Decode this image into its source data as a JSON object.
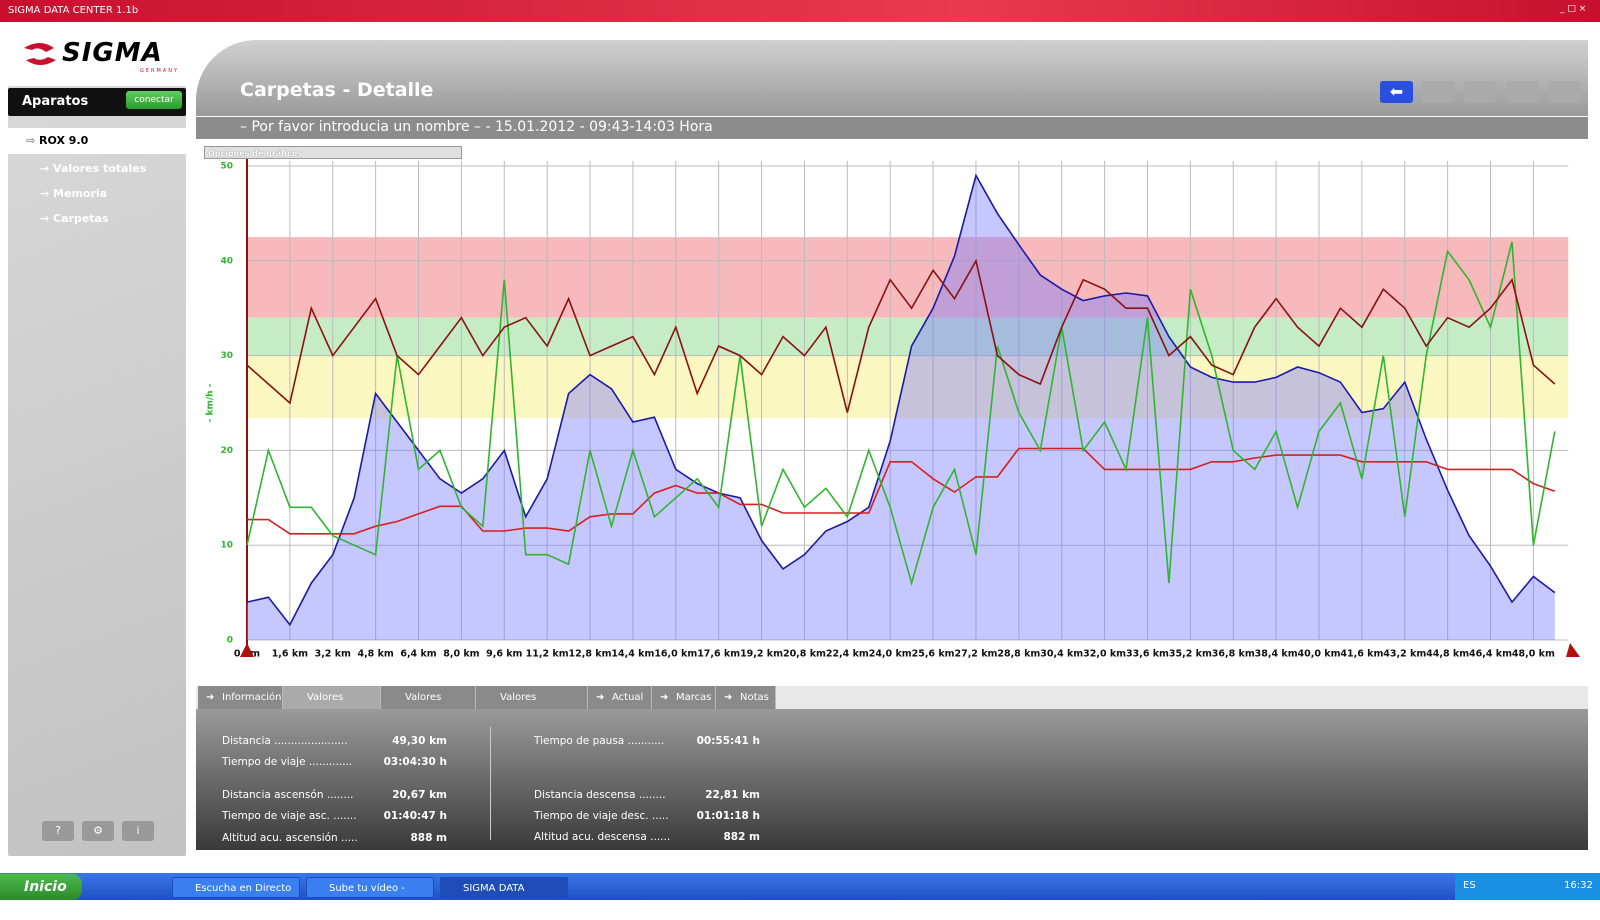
{
  "window_title": "SIGMA DATA CENTER 1.1b",
  "logo": {
    "brand": "SIGMA",
    "tagline": "GERMANY"
  },
  "sidebar": {
    "header": "Aparatos",
    "connect_button": "conectar",
    "device": "ROX 9.0",
    "items": [
      "Valores totales",
      "Memoria",
      "Carpetas"
    ]
  },
  "header": {
    "title": "Carpetas - Detalle",
    "subtitle": "– Por favor introducia un nombre – - 15.01.2012 - 09:43-14:03 Hora"
  },
  "chart_options": "Opciones de gráficos",
  "chart_data": {
    "type": "line",
    "y_label": "- km/h -",
    "xlim": [
      0,
      49.3
    ],
    "ylim": [
      0,
      50
    ],
    "yticks": [
      0,
      10,
      20,
      30,
      40,
      50
    ],
    "grid": true,
    "xticks": [
      {
        "value": 0,
        "label": "0 km"
      },
      {
        "value": 1.6,
        "label": "1,6 km"
      },
      {
        "value": 3.2,
        "label": "3,2 km"
      },
      {
        "value": 4.8,
        "label": "4,8 km"
      },
      {
        "value": 6.4,
        "label": "6,4 km"
      },
      {
        "value": 8,
        "label": "8,0 km"
      },
      {
        "value": 9.6,
        "label": "9,6 km"
      },
      {
        "value": 11.2,
        "label": "11,2 km"
      },
      {
        "value": 12.8,
        "label": "12,8 km"
      },
      {
        "value": 14.4,
        "label": "14,4 km"
      },
      {
        "value": 16,
        "label": "16,0 km"
      },
      {
        "value": 17.6,
        "label": "17,6 km"
      },
      {
        "value": 19.2,
        "label": "19,2 km"
      },
      {
        "value": 20.8,
        "label": "20,8 km"
      },
      {
        "value": 22.4,
        "label": "22,4 km"
      },
      {
        "value": 24,
        "label": "24,0 km"
      },
      {
        "value": 25.6,
        "label": "25,6 km"
      },
      {
        "value": 27.2,
        "label": "27,2 km"
      },
      {
        "value": 28.8,
        "label": "28,8 km"
      },
      {
        "value": 30.4,
        "label": "30,4 km"
      },
      {
        "value": 32,
        "label": "32,0 km"
      },
      {
        "value": 33.6,
        "label": "33,6 km"
      },
      {
        "value": 35.2,
        "label": "35,2 km"
      },
      {
        "value": 36.8,
        "label": "36,8 km"
      },
      {
        "value": 38.4,
        "label": "38,4 km"
      },
      {
        "value": 40,
        "label": "40,0 km"
      },
      {
        "value": 41.6,
        "label": "41,6 km"
      },
      {
        "value": 43.2,
        "label": "43,2 km"
      },
      {
        "value": 44.8,
        "label": "44,8 km"
      },
      {
        "value": 46.4,
        "label": "46,4 km"
      },
      {
        "value": 48,
        "label": "48,0 km"
      }
    ],
    "zones": [
      {
        "from": 34,
        "to": 42.5,
        "color": "#f7b9bb"
      },
      {
        "from": 30,
        "to": 34,
        "color": "#c5ecc5"
      },
      {
        "from": 23.4,
        "to": 30,
        "color": "#fbf7c0"
      }
    ],
    "x": [
      0,
      0.8,
      1.6,
      2.4,
      3.2,
      4,
      4.8,
      5.6,
      6.4,
      7.2,
      8,
      8.8,
      9.6,
      10.4,
      11.2,
      12,
      12.8,
      13.6,
      14.4,
      15.2,
      16,
      16.8,
      17.6,
      18.4,
      19.2,
      20,
      20.8,
      21.6,
      22.4,
      23.2,
      24,
      24.8,
      25.6,
      26.4,
      27.2,
      28,
      28.8,
      29.6,
      30.4,
      31.2,
      32,
      32.8,
      33.6,
      34.4,
      35.2,
      36,
      36.8,
      37.6,
      38.4,
      39.2,
      40,
      40.8,
      41.6,
      42.4,
      43.2,
      44,
      44.8,
      45.6,
      46.4,
      47.2,
      48,
      48.8
    ],
    "series": [
      {
        "color": "#1a1aaa",
        "area": true,
        "values": [
          4,
          4.5,
          1.6,
          6,
          9,
          15,
          26,
          23,
          20,
          17,
          15.5,
          17,
          20,
          13,
          17,
          26,
          28,
          26.5,
          23,
          23.5,
          18,
          16.5,
          15.5,
          15,
          10.5,
          7.5,
          9,
          11.5,
          12.5,
          14,
          21,
          31,
          35,
          40.5,
          49,
          45,
          41.7,
          38.5,
          37,
          35.8,
          36.3,
          36.6,
          36.3,
          32,
          28.8,
          27.7,
          27.2,
          27.2,
          27.7,
          28.8,
          28.2,
          27.2,
          24,
          24.4,
          27.2,
          21.2,
          15.8,
          11,
          7.8,
          4,
          6.7,
          5
        ]
      },
      {
        "color": "#d42020",
        "values": [
          12.7,
          12.7,
          11.2,
          11.2,
          11.2,
          11.2,
          12,
          12.5,
          13.3,
          14.1,
          14.1,
          11.5,
          11.5,
          11.8,
          11.8,
          11.5,
          13,
          13.3,
          13.3,
          15.5,
          16.3,
          15.5,
          15.5,
          14.3,
          14.3,
          13.4,
          13.4,
          13.4,
          13.4,
          13.4,
          18.8,
          18.8,
          17,
          15.6,
          17.2,
          17.2,
          20.2,
          20.2,
          20.2,
          20.2,
          18,
          18,
          18,
          18,
          18,
          18.8,
          18.8,
          19.2,
          19.5,
          19.5,
          19.5,
          19.5,
          18.8,
          18.8,
          18.8,
          18.8,
          18,
          18,
          18,
          18,
          16.5,
          15.7
        ]
      },
      {
        "color": "#2fb52f",
        "values": [
          10,
          20,
          14,
          14,
          11,
          10,
          9,
          30,
          18,
          20,
          14,
          12,
          38,
          9,
          9,
          8,
          20,
          12,
          20,
          13,
          15,
          17,
          14,
          30,
          12,
          18,
          14,
          16,
          13,
          20,
          14,
          6,
          14,
          18,
          9,
          31,
          24,
          20,
          33,
          20,
          23,
          18,
          34,
          6,
          37,
          30,
          20,
          18,
          22,
          14,
          22,
          25,
          17,
          30,
          13,
          30,
          41,
          38,
          33,
          42,
          10,
          22
        ]
      },
      {
        "color": "#8b1010",
        "values": [
          29,
          27,
          25,
          35,
          30,
          33,
          36,
          30,
          28,
          31,
          34,
          30,
          33,
          34,
          31,
          36,
          30,
          31,
          32,
          28,
          33,
          26,
          31,
          30,
          28,
          32,
          30,
          33,
          24,
          33,
          38,
          35,
          39,
          36,
          40,
          30,
          28,
          27,
          33,
          38,
          37,
          35,
          35,
          30,
          32,
          29,
          28,
          33,
          36,
          33,
          31,
          35,
          33,
          37,
          35,
          31,
          34,
          33,
          35,
          38,
          29,
          27
        ]
      }
    ]
  },
  "tabs": [
    "Información",
    "Valores totales",
    "Valores media",
    "Valores máx./mín.",
    "Actual",
    "Marcas",
    "Notas"
  ],
  "stats_left": [
    [
      "Distancia ......................",
      "49,30 km"
    ],
    [
      "Tiempo de viaje .............",
      "03:04:30 h"
    ],
    [
      "Distancia ascensón ........",
      "20,67 km"
    ],
    [
      "Tiempo de viaje asc. .......",
      "01:40:47 h"
    ],
    [
      "Altitud acu. ascensión .....",
      "888 m"
    ]
  ],
  "stats_right": [
    [
      "Tiempo de pausa ...........",
      "00:55:41 h"
    ],
    [
      "Distancia descensa ........",
      "22,81 km"
    ],
    [
      "Tiempo de viaje desc. .....",
      "01:01:18 h"
    ],
    [
      "Altitud acu. descensa ......",
      "882 m"
    ]
  ],
  "taskbar": {
    "start": "Inicio",
    "tasks": [
      "Escucha en Directo M...",
      "Sube tu vídeo - YouT...",
      "SIGMA DATA CENTE..."
    ],
    "language": "ES",
    "clock": "16:32"
  }
}
